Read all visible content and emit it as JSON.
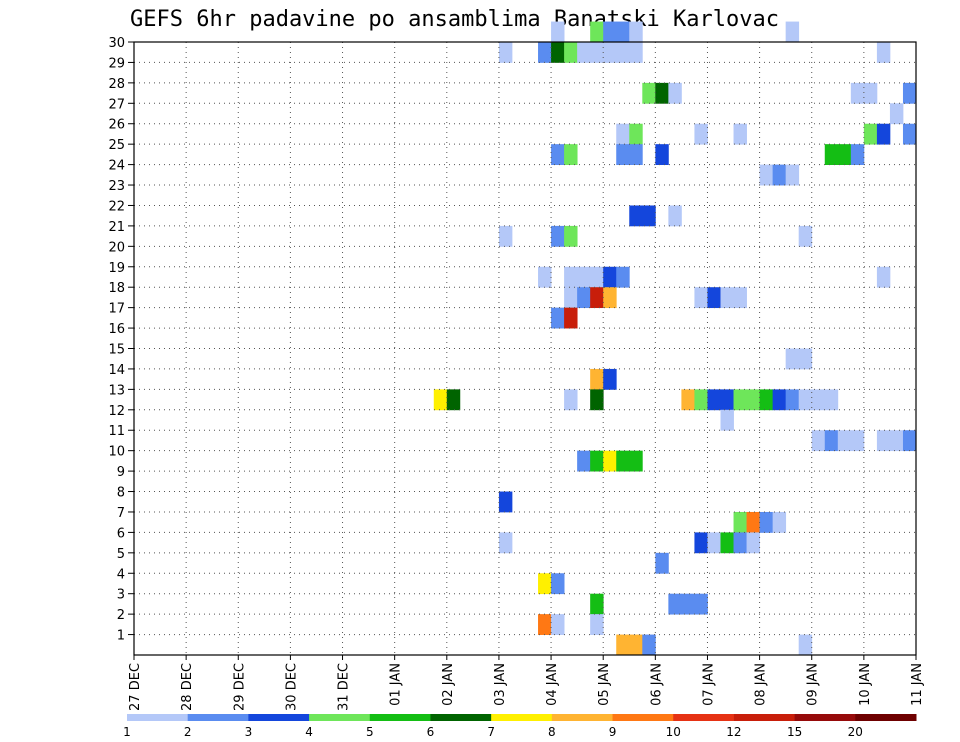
{
  "chart_data": {
    "type": "heatmap",
    "title": "GEFS 6hr padavine po ansamblima Banatski Karlovac",
    "xlabel": "",
    "ylabel": "",
    "x_tick_labels": [
      "27 DEC",
      "28 DEC",
      "29 DEC",
      "30 DEC",
      "31 DEC",
      "01 JAN",
      "02 JAN",
      "03 JAN",
      "04 JAN",
      "05 JAN",
      "06 JAN",
      "07 JAN",
      "08 JAN",
      "09 JAN",
      "10 JAN",
      "11 JAN"
    ],
    "y_tick_labels": [
      "1",
      "2",
      "3",
      "4",
      "5",
      "6",
      "7",
      "8",
      "9",
      "10",
      "11",
      "12",
      "13",
      "14",
      "15",
      "16",
      "17",
      "18",
      "19",
      "20",
      "21",
      "22",
      "23",
      "24",
      "25",
      "26",
      "27",
      "28",
      "29",
      "30"
    ],
    "x_unit": "6-hour step index from 27 DEC 00 (4 steps per day)",
    "xlim": [
      0,
      60
    ],
    "ylim": [
      0,
      30
    ],
    "grid": true,
    "legend": {
      "position": "bottom",
      "labels": [
        "1",
        "2",
        "3",
        "4",
        "5",
        "6",
        "7",
        "8",
        "9",
        "10",
        "12",
        "15",
        "20"
      ],
      "colors": [
        "#b4c8f8",
        "#5a8cf0",
        "#1446dc",
        "#6ee65a",
        "#14be14",
        "#006400",
        "#fff000",
        "#ffb432",
        "#ff7814",
        "#e63214",
        "#c81e0a",
        "#960a0a",
        "#6e0000"
      ]
    },
    "cells": [
      {
        "m": 30,
        "t": 32,
        "l": 1
      },
      {
        "m": 30,
        "t": 35,
        "l": 4
      },
      {
        "m": 30,
        "t": 36,
        "l": 2
      },
      {
        "m": 30,
        "t": 37,
        "l": 2
      },
      {
        "m": 30,
        "t": 38,
        "l": 1
      },
      {
        "m": 30,
        "t": 50,
        "l": 1
      },
      {
        "m": 29,
        "t": 28,
        "l": 1
      },
      {
        "m": 29,
        "t": 31,
        "l": 2
      },
      {
        "m": 29,
        "t": 32,
        "l": 6
      },
      {
        "m": 29,
        "t": 33,
        "l": 4
      },
      {
        "m": 29,
        "t": 34,
        "l": 1
      },
      {
        "m": 29,
        "t": 35,
        "l": 1
      },
      {
        "m": 29,
        "t": 36,
        "l": 1
      },
      {
        "m": 29,
        "t": 37,
        "l": 1
      },
      {
        "m": 29,
        "t": 38,
        "l": 1
      },
      {
        "m": 29,
        "t": 57,
        "l": 1
      },
      {
        "m": 27,
        "t": 39,
        "l": 4
      },
      {
        "m": 27,
        "t": 40,
        "l": 6
      },
      {
        "m": 27,
        "t": 41,
        "l": 1
      },
      {
        "m": 27,
        "t": 55,
        "l": 1
      },
      {
        "m": 27,
        "t": 56,
        "l": 1
      },
      {
        "m": 27,
        "t": 59,
        "l": 2
      },
      {
        "m": 26,
        "t": 58,
        "l": 1
      },
      {
        "m": 25,
        "t": 37,
        "l": 1
      },
      {
        "m": 25,
        "t": 38,
        "l": 4
      },
      {
        "m": 25,
        "t": 43,
        "l": 1
      },
      {
        "m": 25,
        "t": 46,
        "l": 1
      },
      {
        "m": 25,
        "t": 56,
        "l": 4
      },
      {
        "m": 25,
        "t": 57,
        "l": 3
      },
      {
        "m": 25,
        "t": 59,
        "l": 2
      },
      {
        "m": 24,
        "t": 32,
        "l": 2
      },
      {
        "m": 24,
        "t": 33,
        "l": 4
      },
      {
        "m": 24,
        "t": 37,
        "l": 2
      },
      {
        "m": 24,
        "t": 38,
        "l": 2
      },
      {
        "m": 24,
        "t": 40,
        "l": 3
      },
      {
        "m": 24,
        "t": 53,
        "l": 5
      },
      {
        "m": 24,
        "t": 54,
        "l": 5
      },
      {
        "m": 24,
        "t": 55,
        "l": 2
      },
      {
        "m": 23,
        "t": 48,
        "l": 1
      },
      {
        "m": 23,
        "t": 49,
        "l": 2
      },
      {
        "m": 23,
        "t": 50,
        "l": 1
      },
      {
        "m": 21,
        "t": 38,
        "l": 3
      },
      {
        "m": 21,
        "t": 39,
        "l": 3
      },
      {
        "m": 21,
        "t": 41,
        "l": 1
      },
      {
        "m": 20,
        "t": 28,
        "l": 1
      },
      {
        "m": 20,
        "t": 32,
        "l": 2
      },
      {
        "m": 20,
        "t": 33,
        "l": 4
      },
      {
        "m": 20,
        "t": 51,
        "l": 1
      },
      {
        "m": 18,
        "t": 31,
        "l": 1
      },
      {
        "m": 18,
        "t": 33,
        "l": 1
      },
      {
        "m": 18,
        "t": 34,
        "l": 1
      },
      {
        "m": 18,
        "t": 35,
        "l": 1
      },
      {
        "m": 18,
        "t": 36,
        "l": 3
      },
      {
        "m": 18,
        "t": 37,
        "l": 2
      },
      {
        "m": 18,
        "t": 57,
        "l": 1
      },
      {
        "m": 17,
        "t": 33,
        "l": 1
      },
      {
        "m": 17,
        "t": 34,
        "l": 2
      },
      {
        "m": 17,
        "t": 35,
        "l": 11
      },
      {
        "m": 17,
        "t": 36,
        "l": 8
      },
      {
        "m": 17,
        "t": 43,
        "l": 1
      },
      {
        "m": 17,
        "t": 44,
        "l": 3
      },
      {
        "m": 17,
        "t": 45,
        "l": 1
      },
      {
        "m": 17,
        "t": 46,
        "l": 1
      },
      {
        "m": 16,
        "t": 32,
        "l": 2
      },
      {
        "m": 16,
        "t": 33,
        "l": 11
      },
      {
        "m": 14,
        "t": 50,
        "l": 1
      },
      {
        "m": 14,
        "t": 51,
        "l": 1
      },
      {
        "m": 13,
        "t": 35,
        "l": 8
      },
      {
        "m": 13,
        "t": 36,
        "l": 3
      },
      {
        "m": 12,
        "t": 23,
        "l": 7
      },
      {
        "m": 12,
        "t": 24,
        "l": 6
      },
      {
        "m": 12,
        "t": 33,
        "l": 1
      },
      {
        "m": 12,
        "t": 35,
        "l": 6
      },
      {
        "m": 12,
        "t": 42,
        "l": 8
      },
      {
        "m": 12,
        "t": 43,
        "l": 4
      },
      {
        "m": 12,
        "t": 44,
        "l": 3
      },
      {
        "m": 12,
        "t": 45,
        "l": 3
      },
      {
        "m": 12,
        "t": 46,
        "l": 4
      },
      {
        "m": 12,
        "t": 47,
        "l": 4
      },
      {
        "m": 12,
        "t": 48,
        "l": 5
      },
      {
        "m": 12,
        "t": 49,
        "l": 3
      },
      {
        "m": 12,
        "t": 50,
        "l": 2
      },
      {
        "m": 12,
        "t": 51,
        "l": 1
      },
      {
        "m": 12,
        "t": 52,
        "l": 1
      },
      {
        "m": 12,
        "t": 53,
        "l": 1
      },
      {
        "m": 11,
        "t": 45,
        "l": 1
      },
      {
        "m": 10,
        "t": 52,
        "l": 1
      },
      {
        "m": 10,
        "t": 53,
        "l": 2
      },
      {
        "m": 10,
        "t": 54,
        "l": 1
      },
      {
        "m": 10,
        "t": 55,
        "l": 1
      },
      {
        "m": 10,
        "t": 57,
        "l": 1
      },
      {
        "m": 10,
        "t": 58,
        "l": 1
      },
      {
        "m": 10,
        "t": 59,
        "l": 2
      },
      {
        "m": 9,
        "t": 34,
        "l": 2
      },
      {
        "m": 9,
        "t": 35,
        "l": 5
      },
      {
        "m": 9,
        "t": 36,
        "l": 7
      },
      {
        "m": 9,
        "t": 37,
        "l": 5
      },
      {
        "m": 9,
        "t": 38,
        "l": 5
      },
      {
        "m": 7,
        "t": 28,
        "l": 3
      },
      {
        "m": 6,
        "t": 46,
        "l": 4
      },
      {
        "m": 6,
        "t": 47,
        "l": 9
      },
      {
        "m": 6,
        "t": 48,
        "l": 2
      },
      {
        "m": 6,
        "t": 49,
        "l": 1
      },
      {
        "m": 5,
        "t": 28,
        "l": 1
      },
      {
        "m": 5,
        "t": 43,
        "l": 3
      },
      {
        "m": 5,
        "t": 44,
        "l": 1
      },
      {
        "m": 5,
        "t": 45,
        "l": 5
      },
      {
        "m": 5,
        "t": 46,
        "l": 2
      },
      {
        "m": 5,
        "t": 47,
        "l": 1
      },
      {
        "m": 4,
        "t": 40,
        "l": 2
      },
      {
        "m": 3,
        "t": 31,
        "l": 7
      },
      {
        "m": 3,
        "t": 32,
        "l": 2
      },
      {
        "m": 2,
        "t": 35,
        "l": 5
      },
      {
        "m": 2,
        "t": 41,
        "l": 2
      },
      {
        "m": 2,
        "t": 42,
        "l": 2
      },
      {
        "m": 2,
        "t": 43,
        "l": 2
      },
      {
        "m": 1,
        "t": 31,
        "l": 9
      },
      {
        "m": 1,
        "t": 32,
        "l": 1
      },
      {
        "m": 1,
        "t": 35,
        "l": 1
      },
      {
        "m": 0,
        "t": 37,
        "l": 8
      },
      {
        "m": 0,
        "t": 38,
        "l": 8
      },
      {
        "m": 0,
        "t": 39,
        "l": 2
      },
      {
        "m": 0,
        "t": 51,
        "l": 1
      }
    ]
  }
}
